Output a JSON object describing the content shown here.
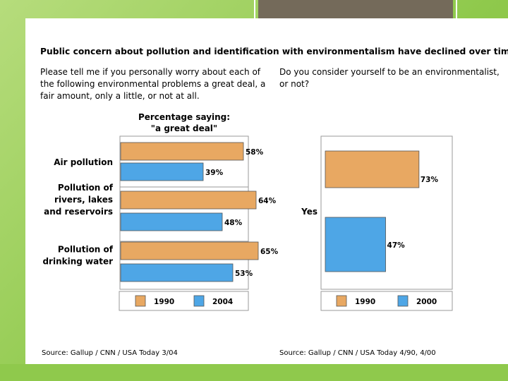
{
  "slide": {
    "title": "Public concern about pollution and identification with environmentalism have declined over time"
  },
  "left": {
    "question": [
      "Please tell me if you personally worry about each of",
      "the following environmental problems a great deal, a",
      "fair amount, only a little, or not at all."
    ],
    "subtitle": [
      "Percentage saying:",
      "\"a great deal\""
    ],
    "source": "Source: Gallup / CNN / USA Today 3/04"
  },
  "right": {
    "question": [
      "Do you consider yourself to be an environmentalist,",
      "or not?"
    ],
    "source": "Source: Gallup / CNN / USA Today 4/90, 4/00"
  },
  "colors": {
    "orange": "#e8a862",
    "blue": "#4ea6e6",
    "grid": "#9a9a9a"
  },
  "chart_data": [
    {
      "type": "bar",
      "orientation": "horizontal",
      "title": "Percentage saying: \"a great deal\"",
      "categories": [
        [
          "Air pollution"
        ],
        [
          "Pollution of",
          "rivers, lakes",
          "and reservoirs"
        ],
        [
          "Pollution of",
          "drinking water"
        ]
      ],
      "series": [
        {
          "name": "1990",
          "color": "#e8a862",
          "values": [
            58,
            64,
            65
          ],
          "labels": [
            "58%",
            "64%",
            "65%"
          ]
        },
        {
          "name": "2004",
          "color": "#4ea6e6",
          "values": [
            39,
            48,
            53
          ],
          "labels": [
            "39%",
            "48%",
            "53%"
          ]
        }
      ],
      "xlim": [
        0,
        100
      ],
      "legend": "bottom"
    },
    {
      "type": "bar",
      "orientation": "horizontal",
      "categories": [
        [
          "Yes"
        ]
      ],
      "series": [
        {
          "name": "1990",
          "color": "#e8a862",
          "values": [
            73
          ],
          "labels": [
            "73%"
          ]
        },
        {
          "name": "2000",
          "color": "#4ea6e6",
          "values": [
            47
          ],
          "labels": [
            "47%"
          ]
        }
      ],
      "xlim": [
        0,
        100
      ],
      "legend": "bottom"
    }
  ]
}
